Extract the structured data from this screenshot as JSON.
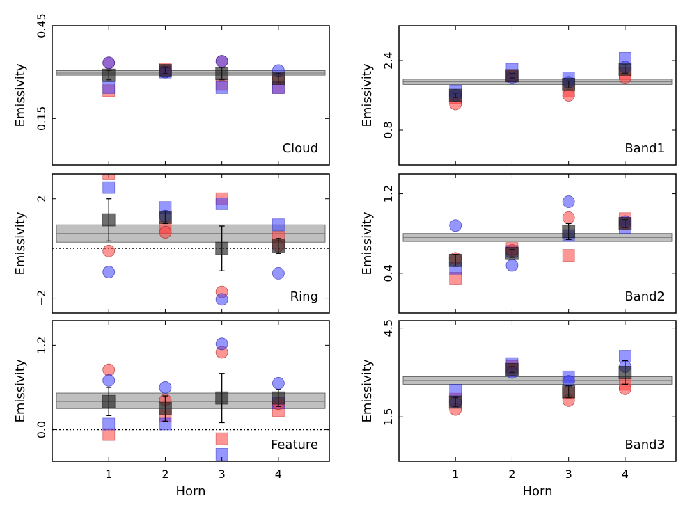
{
  "chart_data": [
    {
      "type": "scatter",
      "label": "Cloud",
      "xlabel": "",
      "ylabel": "Emissivity",
      "xlim": [
        0,
        4.9
      ],
      "ylim": [
        0.0,
        0.45
      ],
      "yticks": [
        0.15,
        0.45
      ],
      "ytick_labels": [
        "0.15",
        "0.45"
      ],
      "xticks": [
        1,
        2,
        3,
        4
      ],
      "xtick_labels": [],
      "band": {
        "low": 0.29,
        "high": 0.305,
        "mean": 0.297
      },
      "zero_line": false,
      "red_squares": [
        [
          1,
          0.24
        ],
        [
          2,
          0.31
        ],
        [
          3,
          0.26
        ],
        [
          4,
          0.25
        ]
      ],
      "blue_squares": [
        [
          1,
          0.25
        ],
        [
          2,
          0.3
        ],
        [
          3,
          0.25
        ],
        [
          4,
          0.25
        ]
      ],
      "red_circles": [
        [
          1,
          0.33
        ],
        [
          2,
          0.305
        ],
        [
          3,
          0.335
        ],
        [
          4,
          0.28
        ]
      ],
      "blue_circles": [
        [
          1,
          0.33
        ],
        [
          2,
          0.3
        ],
        [
          3,
          0.335
        ],
        [
          4,
          0.305
        ]
      ],
      "black": [
        {
          "x": 1,
          "y": 0.29,
          "err": 0.015
        },
        {
          "x": 2,
          "y": 0.305,
          "err": 0.01
        },
        {
          "x": 3,
          "y": 0.295,
          "err": 0.02
        },
        {
          "x": 4,
          "y": 0.28,
          "err": 0.015
        }
      ]
    },
    {
      "type": "scatter",
      "label": "Band1",
      "xlabel": "",
      "ylabel": "Emissivity",
      "xlim": [
        0,
        4.9
      ],
      "ylim": [
        0.0,
        3.2
      ],
      "yticks": [
        0.8,
        2.4
      ],
      "ytick_labels": [
        "0.8",
        "2.4"
      ],
      "xticks": [
        1,
        2,
        3,
        4
      ],
      "xtick_labels": [],
      "band": {
        "low": 1.85,
        "high": 1.97,
        "mean": 1.91
      },
      "zero_line": false,
      "red_squares": [
        [
          1,
          1.55
        ],
        [
          2,
          2.05
        ],
        [
          3,
          1.7
        ],
        [
          4,
          2.1
        ]
      ],
      "blue_squares": [
        [
          1,
          1.7
        ],
        [
          2,
          2.2
        ],
        [
          3,
          2.0
        ],
        [
          4,
          2.45
        ]
      ],
      "red_circles": [
        [
          1,
          1.4
        ],
        [
          2,
          2.05
        ],
        [
          3,
          1.6
        ],
        [
          4,
          2.0
        ]
      ],
      "blue_circles": [
        [
          1,
          1.6
        ],
        [
          2,
          2.0
        ],
        [
          3,
          1.9
        ],
        [
          4,
          2.25
        ]
      ],
      "black": [
        {
          "x": 1,
          "y": 1.6,
          "err": 0.05
        },
        {
          "x": 2,
          "y": 2.05,
          "err": 0.05
        },
        {
          "x": 3,
          "y": 1.85,
          "err": 0.08
        },
        {
          "x": 4,
          "y": 2.2,
          "err": 0.1
        }
      ]
    },
    {
      "type": "scatter",
      "label": "Ring",
      "xlabel": "",
      "ylabel": "Emissivity",
      "xlim": [
        0,
        4.9
      ],
      "ylim": [
        -2.6,
        3.0
      ],
      "yticks": [
        -2,
        2
      ],
      "ytick_labels": [
        "−2",
        "2"
      ],
      "xticks": [
        1,
        2,
        3,
        4
      ],
      "xtick_labels": [],
      "band": {
        "low": 0.25,
        "high": 0.95,
        "mean": 0.6
      },
      "zero_line": true,
      "red_squares": [
        [
          1,
          3.0
        ],
        [
          2,
          0.85
        ],
        [
          3,
          2.0
        ],
        [
          4,
          0.45
        ]
      ],
      "blue_squares": [
        [
          1,
          2.45
        ],
        [
          2,
          1.65
        ],
        [
          3,
          1.8
        ],
        [
          4,
          0.95
        ]
      ],
      "red_circles": [
        [
          1,
          -0.1
        ],
        [
          2,
          0.65
        ],
        [
          3,
          -1.75
        ],
        [
          4,
          0.1
        ]
      ],
      "blue_circles": [
        [
          1,
          -0.95
        ],
        [
          2,
          1.3
        ],
        [
          3,
          -2.05
        ],
        [
          4,
          -1.0
        ]
      ],
      "black": [
        {
          "x": 1,
          "y": 1.15,
          "err": 0.85
        },
        {
          "x": 2,
          "y": 1.25,
          "err": 0.25
        },
        {
          "x": 3,
          "y": 0.0,
          "err": 0.9
        },
        {
          "x": 4,
          "y": 0.1,
          "err": 0.3
        }
      ]
    },
    {
      "type": "scatter",
      "label": "Band2",
      "xlabel": "",
      "ylabel": "Emissivity",
      "xlim": [
        0,
        4.9
      ],
      "ylim": [
        0.0,
        1.4
      ],
      "yticks": [
        0.4,
        1.2
      ],
      "ytick_labels": [
        "0.4",
        "1.2"
      ],
      "xticks": [
        1,
        2,
        3,
        4
      ],
      "xtick_labels": [],
      "band": {
        "low": 0.72,
        "high": 0.8,
        "mean": 0.76
      },
      "zero_line": false,
      "red_squares": [
        [
          1,
          0.35
        ],
        [
          2,
          0.65
        ],
        [
          3,
          0.58
        ],
        [
          4,
          0.95
        ]
      ],
      "blue_squares": [
        [
          1,
          0.45
        ],
        [
          2,
          0.62
        ],
        [
          3,
          0.78
        ],
        [
          4,
          0.86
        ]
      ],
      "red_circles": [
        [
          1,
          0.55
        ],
        [
          2,
          0.63
        ],
        [
          3,
          0.96
        ],
        [
          4,
          0.9
        ]
      ],
      "blue_circles": [
        [
          1,
          0.88
        ],
        [
          2,
          0.48
        ],
        [
          3,
          1.12
        ],
        [
          4,
          0.92
        ]
      ],
      "black": [
        {
          "x": 1,
          "y": 0.53,
          "err": 0.06
        },
        {
          "x": 2,
          "y": 0.6,
          "err": 0.04
        },
        {
          "x": 3,
          "y": 0.82,
          "err": 0.08
        },
        {
          "x": 4,
          "y": 0.9,
          "err": 0.04
        }
      ]
    },
    {
      "type": "scatter",
      "label": "Feature",
      "xlabel": "Horn",
      "ylabel": "Emissivity",
      "xlim": [
        0,
        4.9
      ],
      "ylim": [
        -0.45,
        1.55
      ],
      "yticks": [
        0.0,
        1.2
      ],
      "ytick_labels": [
        "0.0",
        "1.2"
      ],
      "xticks": [
        1,
        2,
        3,
        4
      ],
      "xtick_labels": [
        "1",
        "2",
        "3",
        "4"
      ],
      "band": {
        "low": 0.3,
        "high": 0.52,
        "mean": 0.4
      },
      "zero_line": true,
      "red_squares": [
        [
          1,
          -0.07
        ],
        [
          2,
          0.2
        ],
        [
          3,
          -0.13
        ],
        [
          4,
          0.27
        ]
      ],
      "blue_squares": [
        [
          1,
          0.08
        ],
        [
          2,
          0.08
        ],
        [
          3,
          -0.35
        ],
        [
          4,
          0.38
        ]
      ],
      "red_circles": [
        [
          1,
          0.85
        ],
        [
          2,
          0.42
        ],
        [
          3,
          1.1
        ],
        [
          4,
          0.37
        ]
      ],
      "blue_circles": [
        [
          1,
          0.7
        ],
        [
          2,
          0.6
        ],
        [
          3,
          1.22
        ],
        [
          4,
          0.66
        ]
      ],
      "black": [
        {
          "x": 1,
          "y": 0.4,
          "err": 0.2
        },
        {
          "x": 2,
          "y": 0.3,
          "err": 0.18
        },
        {
          "x": 3,
          "y": 0.45,
          "err": 0.35
        },
        {
          "x": 4,
          "y": 0.45,
          "err": 0.12
        }
      ]
    },
    {
      "type": "scatter",
      "label": "Band3",
      "xlabel": "Horn",
      "ylabel": "Emissivity",
      "xlim": [
        0,
        4.9
      ],
      "ylim": [
        0.0,
        4.75
      ],
      "yticks": [
        1.5,
        4.5
      ],
      "ytick_labels": [
        "1.5",
        "4.5"
      ],
      "xticks": [
        1,
        2,
        3,
        4
      ],
      "xtick_labels": [
        "1",
        "2",
        "3",
        "4"
      ],
      "band": {
        "low": 2.6,
        "high": 2.86,
        "mean": 2.73
      },
      "zero_line": false,
      "red_squares": [
        [
          1,
          2.1
        ],
        [
          2,
          3.2
        ],
        [
          3,
          2.3
        ],
        [
          4,
          2.6
        ]
      ],
      "blue_squares": [
        [
          1,
          2.4
        ],
        [
          2,
          3.3
        ],
        [
          3,
          2.85
        ],
        [
          4,
          3.55
        ]
      ],
      "red_circles": [
        [
          1,
          1.75
        ],
        [
          2,
          3.1
        ],
        [
          3,
          2.05
        ],
        [
          4,
          2.45
        ]
      ],
      "blue_circles": [
        [
          1,
          2.0
        ],
        [
          2,
          3.0
        ],
        [
          3,
          2.7
        ],
        [
          4,
          3.2
        ]
      ],
      "black": [
        {
          "x": 1,
          "y": 2.0,
          "err": 0.15
        },
        {
          "x": 2,
          "y": 3.1,
          "err": 0.1
        },
        {
          "x": 3,
          "y": 2.35,
          "err": 0.2
        },
        {
          "x": 4,
          "y": 3.0,
          "err": 0.4
        }
      ]
    }
  ]
}
